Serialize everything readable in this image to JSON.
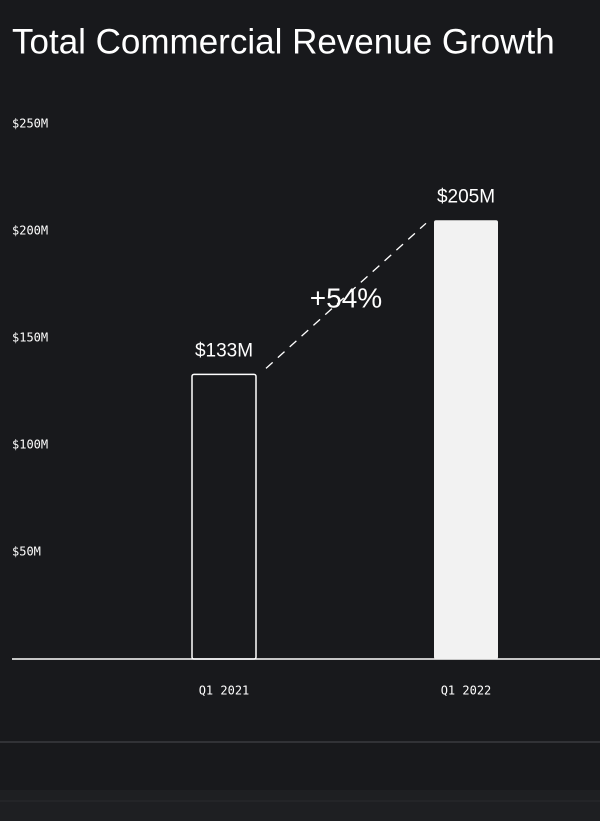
{
  "chart_data": {
    "type": "bar",
    "title": "Total Commercial Revenue Growth",
    "categories": [
      "Q1 2021",
      "Q1 2022"
    ],
    "values": [
      133,
      205
    ],
    "value_labels": [
      "$133M",
      "$205M"
    ],
    "colors": [
      "#ffffff",
      "#f2f2f2"
    ],
    "filled": [
      false,
      true
    ],
    "annotation": "+54%",
    "ylim": [
      0,
      250
    ],
    "yticks": [
      {
        "value": 50,
        "label": "$50M"
      },
      {
        "value": 100,
        "label": "$100M"
      },
      {
        "value": 150,
        "label": "$150M"
      },
      {
        "value": 200,
        "label": "$200M"
      },
      {
        "value": 250,
        "label": "$250M"
      }
    ],
    "grid": false
  }
}
